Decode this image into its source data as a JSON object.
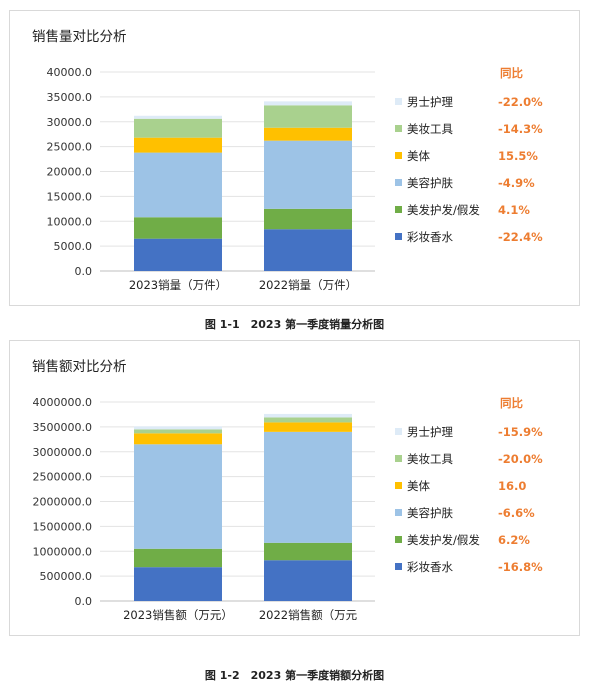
{
  "figures": [
    {
      "caption": "图 1-1　2023 第一季度销量分析图",
      "chart_data": {
        "type": "bar",
        "stacked": true,
        "title": "销售量对比分析",
        "categories": [
          "2023销量（万件）",
          "2022销量（万件）"
        ],
        "ylim": [
          0,
          40000
        ],
        "yticks": [
          "0.0",
          "5000.0",
          "10000.0",
          "15000.0",
          "20000.0",
          "25000.0",
          "30000.0",
          "35000.0",
          "40000.0"
        ],
        "grid": true,
        "legend_position": "right",
        "change_header": "同比",
        "series": [
          {
            "name": "彩妆香水",
            "values": [
              6500,
              8400
            ],
            "color": "#4472c4",
            "change": "-22.4%"
          },
          {
            "name": "美发护发/假发",
            "values": [
              4300,
              4100
            ],
            "color": "#70ad47",
            "change": "4.1%"
          },
          {
            "name": "美容护肤",
            "values": [
              13000,
              13700
            ],
            "color": "#9dc3e6",
            "change": "-4.9%"
          },
          {
            "name": "美体",
            "values": [
              3000,
              2600
            ],
            "color": "#ffc000",
            "change": "15.5%"
          },
          {
            "name": "美妆工具",
            "values": [
              3800,
              4500
            ],
            "color": "#a9d18e",
            "change": "-14.3%"
          },
          {
            "name": "男士护理",
            "values": [
              600,
              800
            ],
            "color": "#deebf7",
            "change": "-22.0%"
          }
        ]
      }
    },
    {
      "caption": "图 1-2　2023 第一季度销额分析图",
      "chart_data": {
        "type": "bar",
        "stacked": true,
        "title": "销售额对比分析",
        "categories": [
          "2023销售额（万元）",
          "2022销售额（万元"
        ],
        "ylim": [
          0,
          4000000
        ],
        "yticks": [
          "0.0",
          "500000.0",
          "1000000.0",
          "1500000.0",
          "2000000.0",
          "2500000.0",
          "3000000.0",
          "3500000.0",
          "4000000.0"
        ],
        "grid": true,
        "legend_position": "right",
        "change_header": "同比",
        "series": [
          {
            "name": "彩妆香水",
            "values": [
              680000,
              820000
            ],
            "color": "#4472c4",
            "change": "-16.8%"
          },
          {
            "name": "美发护发/假发",
            "values": [
              370000,
              350000
            ],
            "color": "#70ad47",
            "change": "6.2%"
          },
          {
            "name": "美容护肤",
            "values": [
              2100000,
              2230000
            ],
            "color": "#9dc3e6",
            "change": "-6.6%"
          },
          {
            "name": "美体",
            "values": [
              220000,
              190000
            ],
            "color": "#ffc000",
            "change": "16.0"
          },
          {
            "name": "美妆工具",
            "values": [
              80000,
              100000
            ],
            "color": "#a9d18e",
            "change": "-20.0%"
          },
          {
            "name": "男士护理",
            "values": [
              60000,
              70000
            ],
            "color": "#deebf7",
            "change": "-15.9%"
          }
        ]
      }
    }
  ]
}
